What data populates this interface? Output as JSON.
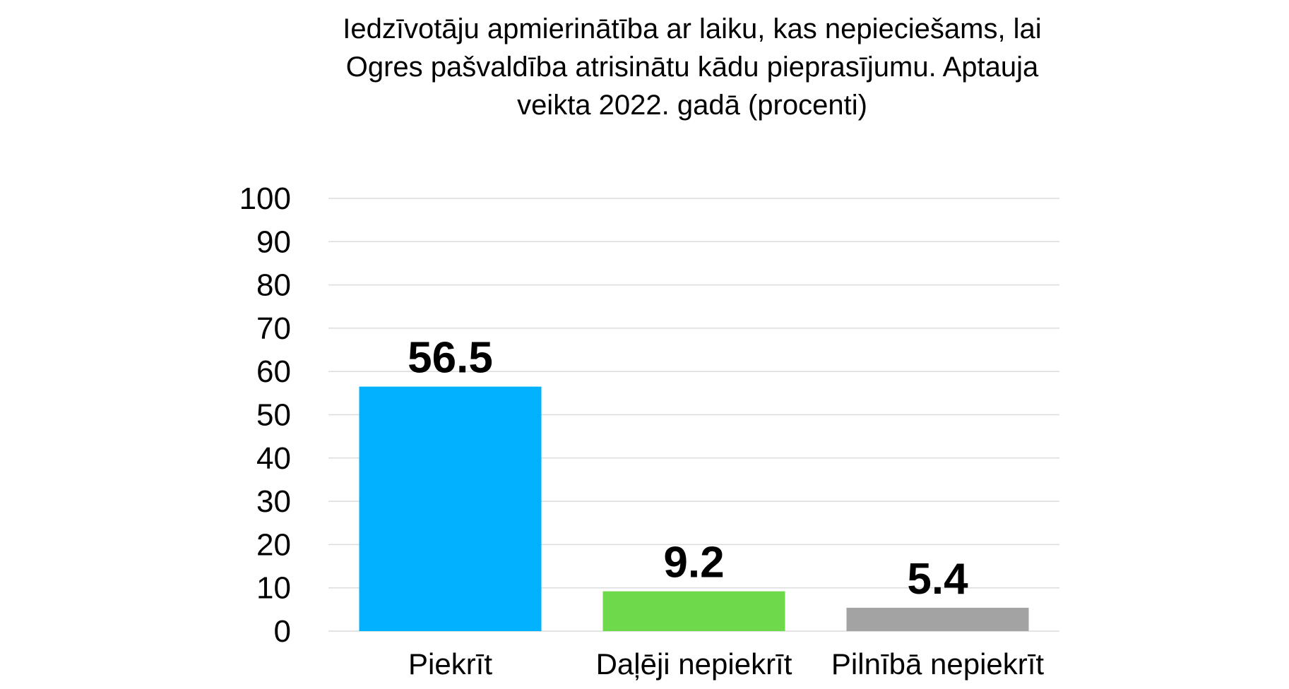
{
  "chart_data": {
    "type": "bar",
    "title": "Iedzīvotāju apmierinātība ar laiku, kas nepieciešams, lai Ogres pašvaldība atrisinātu kādu pieprasījumu. Aptauja veikta 2022. gadā (procenti)",
    "categories": [
      "Piekrīt",
      "Daļēji nepiekrīt",
      "Pilnībā nepiekrīt"
    ],
    "values": [
      56.5,
      9.2,
      5.4
    ],
    "data_labels": [
      "56.5",
      "9.2",
      "5.4"
    ],
    "colors": [
      "#00b2ff",
      "#6ed94a",
      "#a3a3a3"
    ],
    "ylim": [
      0,
      100
    ],
    "yticks": [
      0,
      10,
      20,
      30,
      40,
      50,
      60,
      70,
      80,
      90,
      100
    ],
    "ytick_labels": [
      "0",
      "10",
      "20",
      "30",
      "40",
      "50",
      "60",
      "70",
      "80",
      "90",
      "100"
    ],
    "xlabel": "",
    "ylabel": "",
    "grid": true,
    "legend": false
  }
}
